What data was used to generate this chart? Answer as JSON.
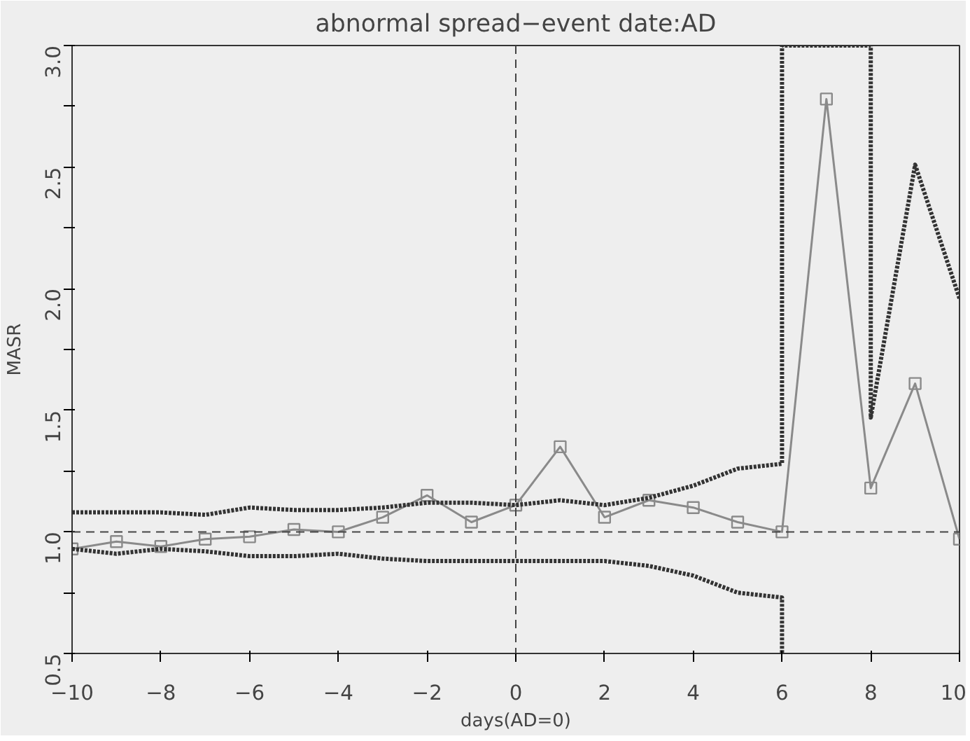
{
  "chart_data": {
    "type": "line",
    "title": "abnormal spread−event date:AD",
    "xlabel": "days(AD=0)",
    "ylabel": "MASR",
    "x": [
      -10,
      -9,
      -8,
      -7,
      -6,
      -5,
      -4,
      -3,
      -2,
      -1,
      0,
      1,
      2,
      3,
      4,
      5,
      6,
      7,
      8,
      9,
      10
    ],
    "series": [
      {
        "color": "#8a8a8a",
        "marker": "square",
        "line_style": "solid",
        "values": [
          0.93,
          0.96,
          0.94,
          0.97,
          0.98,
          1.01,
          1.0,
          1.06,
          1.15,
          1.04,
          1.11,
          1.35,
          1.06,
          1.13,
          1.1,
          1.04,
          1.0,
          2.78,
          1.18,
          1.61,
          0.97
        ]
      },
      {
        "color": "#333333",
        "marker": "none",
        "line_style": "dotted",
        "x": [
          -10,
          -9,
          -8,
          -7,
          -6,
          -5,
          -4,
          -3,
          -2,
          -1,
          0,
          1,
          2,
          3,
          4,
          5,
          6,
          6,
          8,
          8,
          9,
          10
        ],
        "values": [
          1.08,
          1.08,
          1.08,
          1.07,
          1.1,
          1.09,
          1.09,
          1.1,
          1.12,
          1.12,
          1.11,
          1.13,
          1.11,
          1.14,
          1.19,
          1.26,
          1.28,
          3.0,
          3.0,
          1.47,
          2.51,
          1.96
        ]
      },
      {
        "color": "#333333",
        "marker": "none",
        "line_style": "dotted",
        "x": [
          -10,
          -9,
          -8,
          -7,
          -6,
          -5,
          -4,
          -3,
          -2,
          -1,
          0,
          1,
          2,
          3,
          4,
          5,
          6,
          6
        ],
        "values": [
          0.93,
          0.91,
          0.93,
          0.92,
          0.9,
          0.9,
          0.91,
          0.89,
          0.88,
          0.88,
          0.88,
          0.88,
          0.88,
          0.86,
          0.82,
          0.75,
          0.73,
          0.5
        ]
      }
    ],
    "xlim": [
      -10,
      10
    ],
    "ylim": [
      0.5,
      3.0
    ],
    "xticks": [
      {
        "value": -10,
        "label": "−10"
      },
      {
        "value": -8,
        "label": "−8"
      },
      {
        "value": -6,
        "label": "−6"
      },
      {
        "value": -4,
        "label": "−4"
      },
      {
        "value": -2,
        "label": "−2"
      },
      0,
      2,
      4,
      6,
      8,
      10
    ],
    "yticks": [
      {
        "value": 0.5,
        "label": "0.5"
      },
      {
        "value": 0.75,
        "label": null
      },
      {
        "value": 1.0,
        "label": "1.0"
      },
      {
        "value": 1.25,
        "label": null
      },
      {
        "value": 1.5,
        "label": "1.5"
      },
      {
        "value": 1.75,
        "label": null
      },
      {
        "value": 2.0,
        "label": "2.0"
      },
      {
        "value": 2.25,
        "label": null
      },
      {
        "value": 2.5,
        "label": "2.5"
      },
      {
        "value": 2.75,
        "label": null
      },
      {
        "value": 3.0,
        "label": "3.0"
      }
    ],
    "ref_lines": [
      {
        "axis": "y",
        "value": 1.0,
        "color": "#444444",
        "line_style": "dashed"
      },
      {
        "axis": "x",
        "value": 0,
        "color": "#444444",
        "line_style": "dashed"
      }
    ],
    "grid": false
  }
}
